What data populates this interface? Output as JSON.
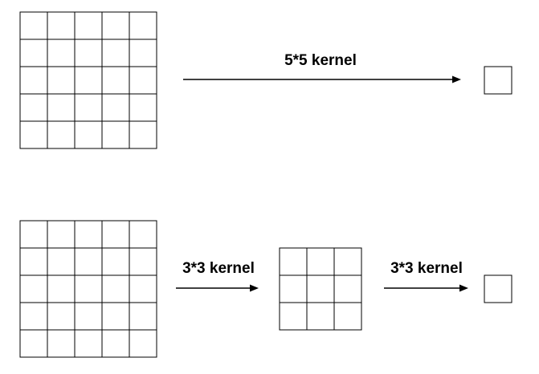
{
  "diagram": {
    "top_row": {
      "input_grid": {
        "rows": 5,
        "cols": 5
      },
      "arrow_label": "5*5 kernel",
      "output_grid": {
        "rows": 1,
        "cols": 1
      }
    },
    "bottom_row": {
      "input_grid": {
        "rows": 5,
        "cols": 5
      },
      "first_arrow_label": "3*3 kernel",
      "middle_grid": {
        "rows": 3,
        "cols": 3
      },
      "second_arrow_label": "3*3 kernel",
      "output_grid": {
        "rows": 1,
        "cols": 1
      }
    }
  }
}
